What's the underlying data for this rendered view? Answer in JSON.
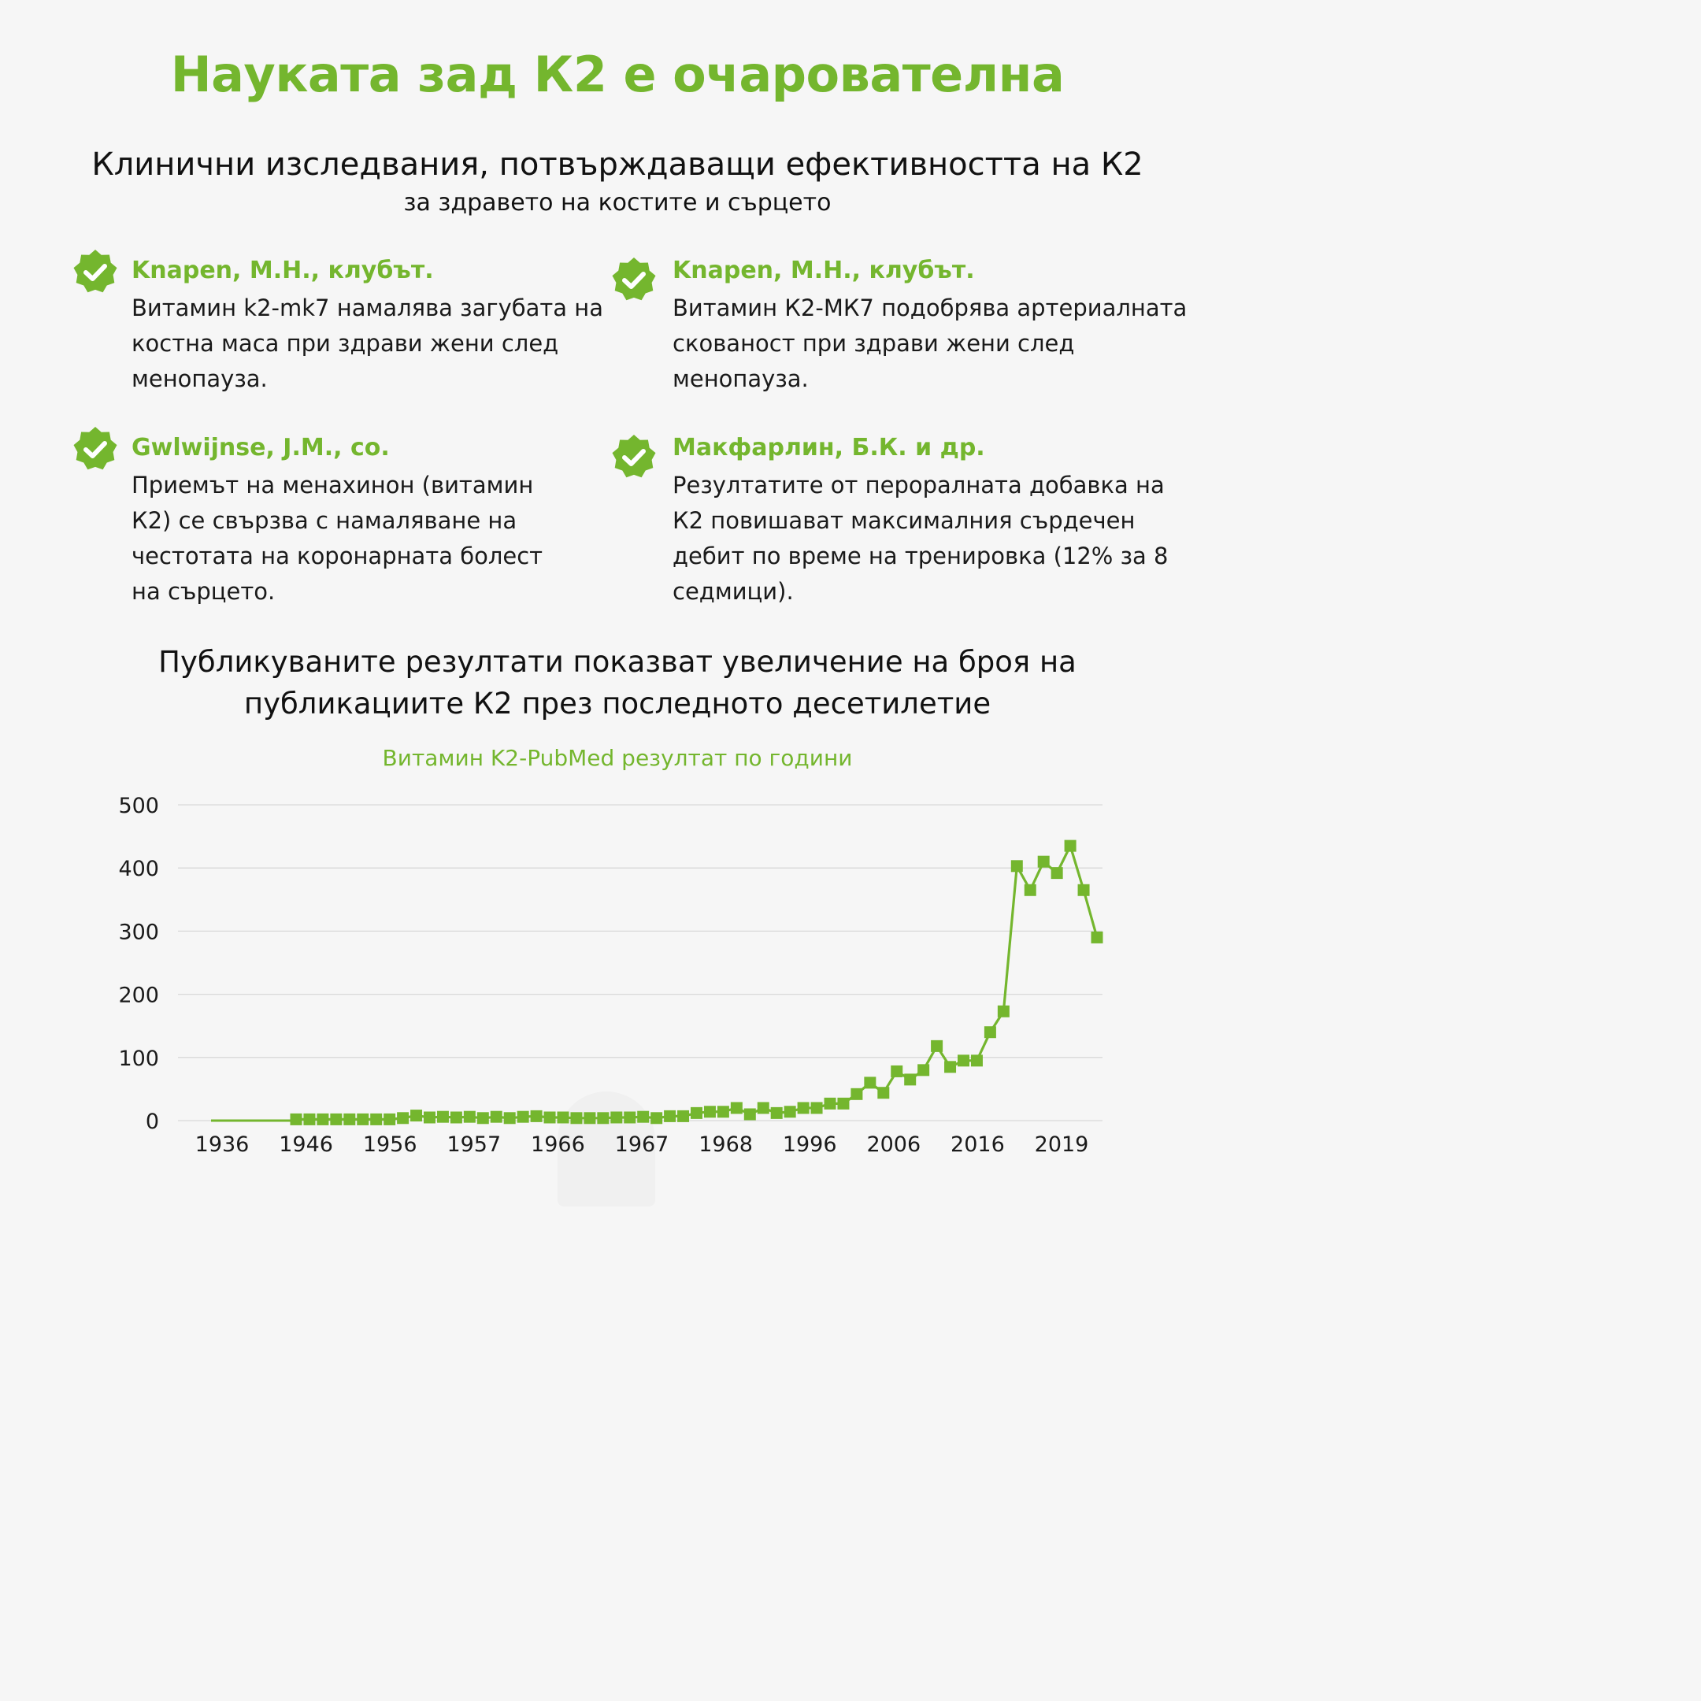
{
  "header": {
    "title": "Науката зад К2 е очарователна",
    "subtitle": "Клинични изследвания, потвърждаващи ефективността на К2",
    "subtitle2": "за здравето на костите и сърцето"
  },
  "studies": [
    {
      "author": "Knapen, M.H., клубът.",
      "text": "Витамин k2-mk7 намалява загубата на костна маса при здрави жени след менопауза."
    },
    {
      "author": "Knapen, M.H., клубът.",
      "text": "Витамин К2-МК7 подобрява артериалната скованост при здрави жени след менопауза."
    },
    {
      "author": "Gwlwijnse, J.M., co.",
      "text": "Приемът на менахинон (витамин К2) се свързва с намаляване на честотата на коронарната болест на сърцето."
    },
    {
      "author": "Макфарлин, Б.К. и др.",
      "text": "Резултатите от пероралната добавка на К2 повишават максималния сърдечен дебит по време на тренировка (12% за 8 седмици)."
    }
  ],
  "publications": {
    "heading": "Публикуваните резултати показват увеличение на броя на публикациите К2 през последното десетилетие"
  },
  "colors": {
    "accent": "#74b62e",
    "grid": "#d9d9d9",
    "text": "#1a1a1a"
  },
  "icons": {
    "badge": "check-badge-icon"
  },
  "chart_data": {
    "type": "line",
    "title": "Витамин K2-PubMed резултат по години",
    "xlabel": "",
    "ylabel": "",
    "ylim": [
      0,
      500
    ],
    "yticks": [
      0,
      100,
      200,
      300,
      400,
      500
    ],
    "grid": true,
    "x_tick_labels": [
      "1936",
      "1946",
      "1956",
      "1957",
      "1966",
      "1967",
      "1968",
      "1996",
      "2006",
      "2016",
      "2019"
    ],
    "series": [
      {
        "name": "Витамин K2-PubMed резултат",
        "values": [
          2,
          2,
          2,
          2,
          2,
          2,
          2,
          2,
          4,
          8,
          5,
          6,
          5,
          6,
          4,
          6,
          4,
          6,
          7,
          5,
          5,
          4,
          4,
          4,
          5,
          5,
          6,
          4,
          7,
          7,
          12,
          14,
          14,
          20,
          10,
          20,
          12,
          14,
          20,
          20,
          27,
          27,
          42,
          60,
          44,
          78,
          65,
          80,
          118,
          85,
          95,
          95,
          140,
          173,
          403,
          365,
          410,
          392,
          435,
          365,
          290
        ]
      }
    ]
  }
}
